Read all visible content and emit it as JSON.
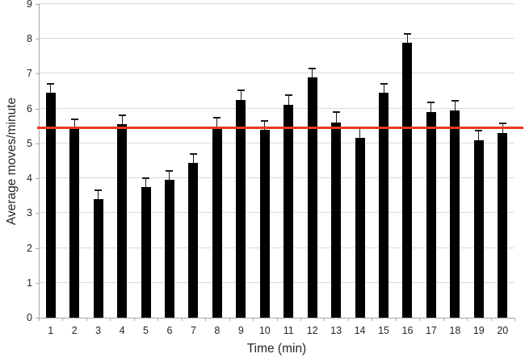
{
  "chart_data": {
    "type": "bar",
    "title": "",
    "xlabel": "Time (min)",
    "ylabel": "Average moves/minute",
    "categories": [
      "1",
      "2",
      "3",
      "4",
      "5",
      "6",
      "7",
      "8",
      "9",
      "10",
      "11",
      "12",
      "13",
      "14",
      "15",
      "16",
      "17",
      "18",
      "19",
      "20"
    ],
    "series": [
      {
        "name": "Average moves per minute",
        "values": [
          6.45,
          5.45,
          3.4,
          5.55,
          3.75,
          3.95,
          4.45,
          5.45,
          6.25,
          5.4,
          6.1,
          6.9,
          5.6,
          5.15,
          6.45,
          7.9,
          5.9,
          5.95,
          5.1,
          5.3
        ],
        "errors_plus": [
          0.25,
          0.25,
          0.25,
          0.25,
          0.25,
          0.25,
          0.25,
          0.28,
          0.27,
          0.25,
          0.28,
          0.25,
          0.3,
          0.28,
          0.27,
          0.25,
          0.28,
          0.28,
          0.27,
          0.27
        ]
      }
    ],
    "ylim": [
      0,
      9
    ],
    "ytick_step": 1,
    "yticks": [
      "0",
      "1",
      "2",
      "3",
      "4",
      "5",
      "6",
      "7",
      "8",
      "9"
    ],
    "grid": true,
    "legend": "none",
    "reference_line": {
      "value": 5.45,
      "color": "#e8391c"
    },
    "colors": {
      "bar": "#000000",
      "gridline": "#d9d9d9",
      "axis": "#a6a6a6",
      "error_bar": "#1a1a1a",
      "label_text": "#262626"
    }
  }
}
